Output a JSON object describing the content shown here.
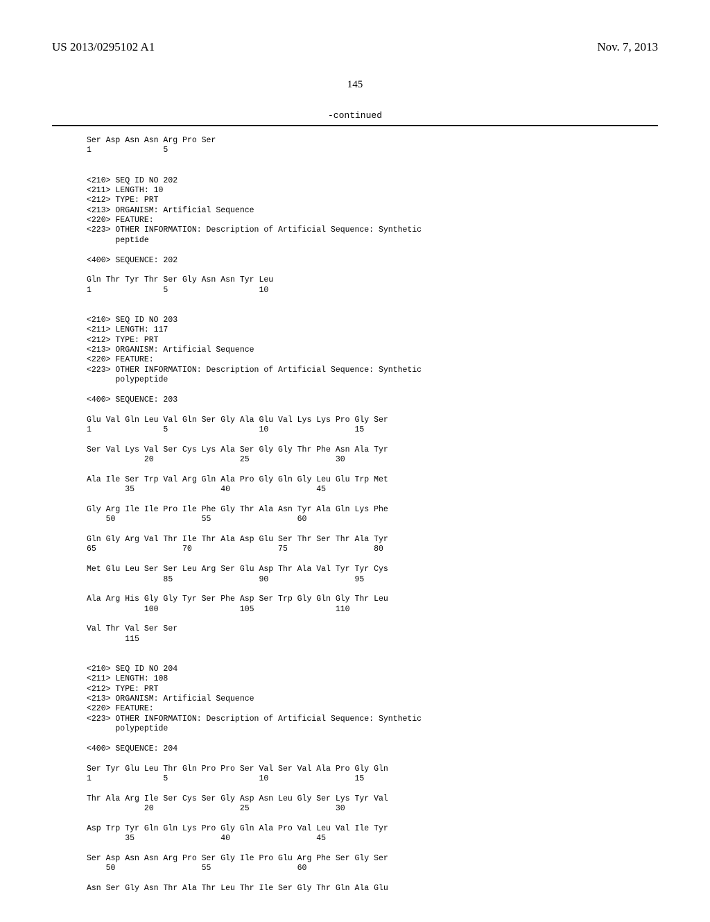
{
  "header": {
    "pub_number": "US 2013/0295102 A1",
    "pub_date": "Nov. 7, 2013"
  },
  "page_number": "145",
  "continued_label": "-continued",
  "sequence_text": "Ser Asp Asn Asn Arg Pro Ser\n1               5\n\n\n<210> SEQ ID NO 202\n<211> LENGTH: 10\n<212> TYPE: PRT\n<213> ORGANISM: Artificial Sequence\n<220> FEATURE:\n<223> OTHER INFORMATION: Description of Artificial Sequence: Synthetic\n      peptide\n\n<400> SEQUENCE: 202\n\nGln Thr Tyr Thr Ser Gly Asn Asn Tyr Leu\n1               5                   10\n\n\n<210> SEQ ID NO 203\n<211> LENGTH: 117\n<212> TYPE: PRT\n<213> ORGANISM: Artificial Sequence\n<220> FEATURE:\n<223> OTHER INFORMATION: Description of Artificial Sequence: Synthetic\n      polypeptide\n\n<400> SEQUENCE: 203\n\nGlu Val Gln Leu Val Gln Ser Gly Ala Glu Val Lys Lys Pro Gly Ser\n1               5                   10                  15\n\nSer Val Lys Val Ser Cys Lys Ala Ser Gly Gly Thr Phe Asn Ala Tyr\n            20                  25                  30\n\nAla Ile Ser Trp Val Arg Gln Ala Pro Gly Gln Gly Leu Glu Trp Met\n        35                  40                  45\n\nGly Arg Ile Ile Pro Ile Phe Gly Thr Ala Asn Tyr Ala Gln Lys Phe\n    50                  55                  60\n\nGln Gly Arg Val Thr Ile Thr Ala Asp Glu Ser Thr Ser Thr Ala Tyr\n65                  70                  75                  80\n\nMet Glu Leu Ser Ser Leu Arg Ser Glu Asp Thr Ala Val Tyr Tyr Cys\n                85                  90                  95\n\nAla Arg His Gly Gly Tyr Ser Phe Asp Ser Trp Gly Gln Gly Thr Leu\n            100                 105                 110\n\nVal Thr Val Ser Ser\n        115\n\n\n<210> SEQ ID NO 204\n<211> LENGTH: 108\n<212> TYPE: PRT\n<213> ORGANISM: Artificial Sequence\n<220> FEATURE:\n<223> OTHER INFORMATION: Description of Artificial Sequence: Synthetic\n      polypeptide\n\n<400> SEQUENCE: 204\n\nSer Tyr Glu Leu Thr Gln Pro Pro Ser Val Ser Val Ala Pro Gly Gln\n1               5                   10                  15\n\nThr Ala Arg Ile Ser Cys Ser Gly Asp Asn Leu Gly Ser Lys Tyr Val\n            20                  25                  30\n\nAsp Trp Tyr Gln Gln Lys Pro Gly Gln Ala Pro Val Leu Val Ile Tyr\n        35                  40                  45\n\nSer Asp Asn Asn Arg Pro Ser Gly Ile Pro Glu Arg Phe Ser Gly Ser\n    50                  55                  60\n\nAsn Ser Gly Asn Thr Ala Thr Leu Thr Ile Ser Gly Thr Gln Ala Glu"
}
